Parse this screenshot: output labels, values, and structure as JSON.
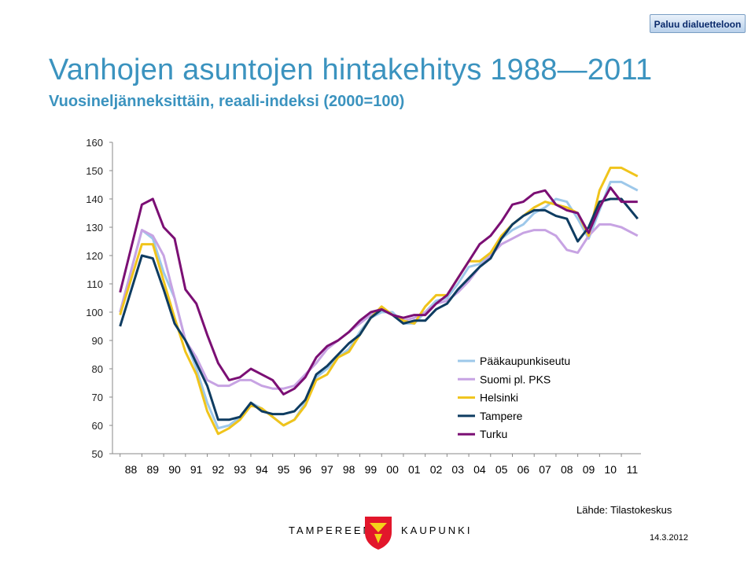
{
  "header": {
    "back_label": "Paluu dialuetteloon"
  },
  "footer": {
    "source": "Lähde: Tilastokeskus",
    "left_text": "TAMPEREEN",
    "right_text": "KAUPUNKI",
    "date": "14.3.2012"
  },
  "colors": {
    "title": "#3b93bf",
    "Pääkaupunkiseutu": "#9dc8ea",
    "Suomi pl. PKS": "#c7a3e3",
    "Helsinki": "#f0c41b",
    "Tampere": "#0e3c61",
    "Turku": "#7b0f74"
  },
  "icons": {
    "logo": "tampere-coat-of-arms-icon"
  },
  "chart_data": {
    "type": "line",
    "title": "Vanhojen asuntojen hintakehitys 1988—2011",
    "subtitle": "Vuosineljänneksittäin, reaali-indeksi (2000=100)",
    "xlabel": "",
    "ylabel": "",
    "ylim": [
      50,
      160
    ],
    "yticks": [
      50,
      60,
      70,
      80,
      90,
      100,
      110,
      120,
      130,
      140,
      150,
      160
    ],
    "xticks": [
      "88",
      "89",
      "90",
      "91",
      "92",
      "93",
      "94",
      "95",
      "96",
      "97",
      "98",
      "99",
      "00",
      "01",
      "02",
      "03",
      "04",
      "05",
      "06",
      "07",
      "08",
      "09",
      "10",
      "11"
    ],
    "grid": false,
    "legend": "lower-right",
    "x": [
      1988.0,
      1989.0,
      1989.5,
      1990.0,
      1990.5,
      1991.0,
      1991.5,
      1992.0,
      1992.5,
      1993.0,
      1993.5,
      1994.0,
      1994.5,
      1995.0,
      1995.5,
      1996.0,
      1996.5,
      1997.0,
      1997.5,
      1998.0,
      1998.5,
      1999.0,
      1999.5,
      2000.0,
      2000.5,
      2001.0,
      2001.5,
      2002.0,
      2002.5,
      2003.0,
      2003.5,
      2004.0,
      2004.5,
      2005.0,
      2005.5,
      2006.0,
      2006.5,
      2007.0,
      2007.5,
      2008.0,
      2008.5,
      2009.0,
      2009.5,
      2010.0,
      2010.5,
      2011.0,
      2011.75
    ],
    "series": [
      {
        "name": "Pääkaupunkiseutu",
        "values": [
          100,
          129,
          126,
          114,
          105,
          90,
          80,
          68,
          59,
          60,
          63,
          68,
          66,
          63,
          60,
          62,
          68,
          77,
          80,
          84,
          87,
          93,
          98,
          100,
          100,
          96,
          96,
          100,
          104,
          105,
          110,
          116,
          117,
          121,
          126,
          129,
          131,
          135,
          137,
          140,
          139,
          133,
          126,
          136,
          146,
          146,
          143
        ]
      },
      {
        "name": "Suomi pl. PKS",
        "values": [
          100,
          129,
          127,
          120,
          105,
          90,
          84,
          76,
          74,
          74,
          76,
          76,
          74,
          73,
          73,
          74,
          78,
          82,
          87,
          90,
          93,
          96,
          99,
          101,
          99,
          97,
          98,
          100,
          103,
          104,
          107,
          111,
          116,
          120,
          124,
          126,
          128,
          129,
          129,
          127,
          122,
          121,
          127,
          131,
          131,
          130,
          127
        ]
      },
      {
        "name": "Helsinki",
        "values": [
          99,
          124,
          124,
          111,
          98,
          86,
          78,
          65,
          57,
          59,
          62,
          67,
          66,
          63,
          60,
          62,
          67,
          76,
          78,
          84,
          86,
          92,
          98,
          102,
          99,
          97,
          96,
          102,
          106,
          106,
          112,
          118,
          118,
          121,
          127,
          131,
          134,
          137,
          139,
          138,
          137,
          135,
          127,
          143,
          151,
          151,
          148
        ]
      },
      {
        "name": "Tampere",
        "values": [
          95,
          120,
          119,
          108,
          96,
          90,
          82,
          74,
          62,
          62,
          63,
          68,
          65,
          64,
          64,
          65,
          69,
          78,
          81,
          85,
          89,
          92,
          98,
          101,
          99,
          96,
          97,
          97,
          101,
          103,
          108,
          112,
          116,
          119,
          126,
          131,
          134,
          136,
          136,
          134,
          133,
          125,
          130,
          139,
          140,
          140,
          133
        ]
      },
      {
        "name": "Turku",
        "values": [
          107,
          138,
          140,
          130,
          126,
          108,
          103,
          92,
          82,
          76,
          77,
          80,
          78,
          76,
          71,
          73,
          77,
          84,
          88,
          90,
          93,
          97,
          100,
          101,
          99,
          98,
          99,
          99,
          103,
          106,
          112,
          118,
          124,
          127,
          132,
          138,
          139,
          142,
          143,
          138,
          136,
          135,
          128,
          137,
          144,
          139,
          139
        ]
      }
    ]
  }
}
